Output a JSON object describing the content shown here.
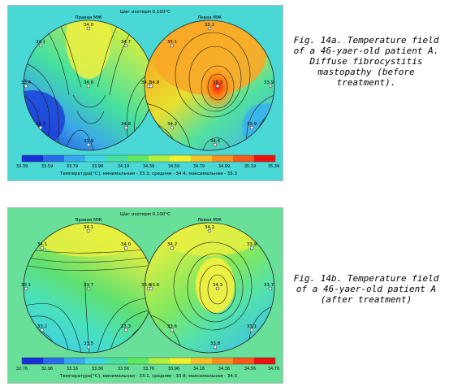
{
  "figures": [
    {
      "step_title": "Шаг изотерм 0.100°C",
      "left_label": "Правая МЖ",
      "right_label": "Левая МЖ",
      "points": [
        "34.1",
        "34.0",
        "34.7",
        "33.4",
        "34.6",
        "34.1",
        "33.3",
        "34.8",
        "33.9",
        "35.2",
        "35.1",
        "34.8",
        "35.3",
        "33.9",
        "34.2",
        "33.9",
        "34.4"
      ],
      "scale_ticks": [
        "33.39",
        "33.59",
        "33.79",
        "33.98",
        "34.19",
        "34.39",
        "34.59",
        "34.79",
        "34.99",
        "35.19",
        "35.39"
      ],
      "stats": "Температура[°C]: минимальная - 33.3, средняя - 34.4, максимальная - 35.3",
      "caption": "Fig. 14a. Temperature field\nof a 46-yaer-old patient A.\nDiffuse fibrocystitis\nmastopathy (before\ntreatment).",
      "colors": {
        "panel_bg": "#49d8d6"
      }
    },
    {
      "step_title": "Шаг изотерм 0.100°C",
      "left_label": "Правая МЖ",
      "right_label": "Левая МЖ",
      "points": [
        "34.1",
        "34.1",
        "34.0",
        "33.1",
        "33.7",
        "33.6",
        "33.2",
        "33.3",
        "33.5",
        "34.2",
        "34.2",
        "33.9",
        "33.8",
        "34.3",
        "33.7",
        "33.6",
        "33.8",
        "33.1"
      ],
      "scale_ticks": [
        "32.76",
        "32.96",
        "33.16",
        "33.36",
        "33.56",
        "33.76",
        "33.96",
        "34.16",
        "34.36",
        "34.56",
        "34.76"
      ],
      "stats": "Температура[°C]: минимальная - 33.1, средняя - 33.8, максимальная - 34.3",
      "caption": "Fig. 14b. Temperature field\nof a 46-yaer-old patient A\n(after treatment)",
      "colors": {
        "panel_bg": "#69e09a"
      }
    }
  ]
}
